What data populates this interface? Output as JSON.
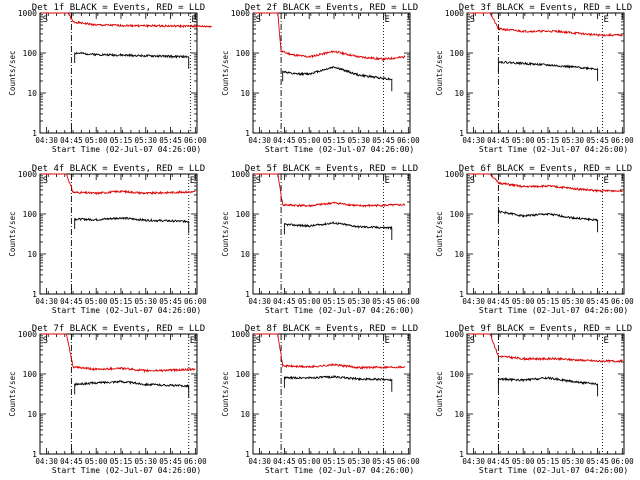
{
  "window_title": "",
  "chart_data": [
    {
      "type": "line",
      "title": "Det 1f BLACK = Events, RED = LLD",
      "xlabel": "Start Time (02-Jul-07 04:26:00)",
      "ylabel": "Counts/sec",
      "yscale": "log",
      "ylim": [
        1,
        1000
      ],
      "xlim_minutes": [
        0,
        95
      ],
      "x_ticks": [
        "04:30",
        "04:45",
        "05:00",
        "05:15",
        "05:30",
        "05:45",
        "06:00"
      ],
      "y_ticks": [
        "1",
        "10",
        "100",
        "1000"
      ],
      "markers": [
        {
          "label": "S",
          "at": "04:27"
        },
        {
          "label": "E",
          "at": "05:57"
        }
      ],
      "vlines": [
        {
          "style": "dash-dot",
          "at": "04:45"
        },
        {
          "style": "dotted",
          "at": "05:57"
        }
      ],
      "series": [
        {
          "name": "RED = LLD",
          "color": "#dd0000",
          "x": [
            "04:27",
            "04:43",
            "04:46",
            "05:00",
            "05:30",
            "06:10"
          ],
          "y": [
            1000,
            1000,
            600,
            500,
            480,
            460
          ]
        },
        {
          "name": "BLACK = Events",
          "color": "#000000",
          "x": [
            "04:47",
            "05:00",
            "05:30",
            "05:56"
          ],
          "y": [
            100,
            92,
            85,
            80
          ]
        }
      ]
    },
    {
      "type": "line",
      "title": "Det 2f BLACK = Events, RED = LLD",
      "xlabel": "Start Time (02-Jul-07 04:26:00)",
      "ylabel": "Counts/sec",
      "yscale": "log",
      "ylim": [
        1,
        1000
      ],
      "xlim_minutes": [
        0,
        95
      ],
      "x_ticks": [
        "04:30",
        "04:45",
        "05:00",
        "05:15",
        "05:30",
        "05:45",
        "06:00"
      ],
      "y_ticks": [
        "1",
        "10",
        "100",
        "1000"
      ],
      "markers": [
        {
          "label": "S",
          "at": "04:27"
        },
        {
          "label": "E",
          "at": "05:45"
        }
      ],
      "vlines": [
        {
          "style": "dash-dot",
          "at": "04:43"
        },
        {
          "style": "dotted",
          "at": "05:45"
        }
      ],
      "series": [
        {
          "name": "RED = LLD",
          "color": "#dd0000",
          "x": [
            "04:27",
            "04:41",
            "04:43",
            "04:50",
            "05:00",
            "05:15",
            "05:30",
            "05:45",
            "05:58"
          ],
          "y": [
            1000,
            1000,
            110,
            90,
            80,
            110,
            80,
            70,
            80
          ]
        },
        {
          "name": "BLACK = Events",
          "color": "#000000",
          "x": [
            "04:44",
            "04:50",
            "05:00",
            "05:15",
            "05:30",
            "05:50"
          ],
          "y": [
            35,
            30,
            30,
            45,
            28,
            22
          ]
        }
      ]
    },
    {
      "type": "line",
      "title": "Det 3f BLACK = Events, RED = LLD",
      "xlabel": "Start Time (02-Jul-07 04:26:00)",
      "ylabel": "Counts/sec",
      "yscale": "log",
      "ylim": [
        1,
        1000
      ],
      "xlim_minutes": [
        0,
        95
      ],
      "x_ticks": [
        "04:30",
        "04:45",
        "05:00",
        "05:15",
        "05:30",
        "05:45",
        "06:00"
      ],
      "y_ticks": [
        "1",
        "10",
        "100",
        "1000"
      ],
      "markers": [
        {
          "label": "S",
          "at": "04:27"
        },
        {
          "label": "E",
          "at": "05:48"
        }
      ],
      "vlines": [
        {
          "style": "dash-dot",
          "at": "04:45"
        },
        {
          "style": "dotted",
          "at": "05:48"
        }
      ],
      "series": [
        {
          "name": "RED = LLD",
          "color": "#dd0000",
          "x": [
            "04:27",
            "04:40",
            "04:45",
            "05:00",
            "05:20",
            "05:45",
            "06:00"
          ],
          "y": [
            1000,
            1000,
            400,
            350,
            350,
            280,
            280
          ]
        },
        {
          "name": "BLACK = Events",
          "color": "#000000",
          "x": [
            "04:45",
            "05:00",
            "05:15",
            "05:45"
          ],
          "y": [
            60,
            55,
            50,
            40
          ]
        }
      ]
    },
    {
      "type": "line",
      "title": "Det 4f BLACK = Events, RED = LLD",
      "xlabel": "Start Time (02-Jul-07 04:26:00)",
      "ylabel": "Counts/sec",
      "yscale": "log",
      "ylim": [
        1,
        1000
      ],
      "xlim_minutes": [
        0,
        95
      ],
      "x_ticks": [
        "04:30",
        "04:45",
        "05:00",
        "05:15",
        "05:30",
        "05:45",
        "06:00"
      ],
      "y_ticks": [
        "1",
        "10",
        "100",
        "1000"
      ],
      "markers": [
        {
          "label": "S",
          "at": "04:27"
        },
        {
          "label": "E",
          "at": "05:56"
        }
      ],
      "vlines": [
        {
          "style": "dash-dot",
          "at": "04:45"
        },
        {
          "style": "dotted",
          "at": "05:56"
        }
      ],
      "series": [
        {
          "name": "RED = LLD",
          "color": "#dd0000",
          "x": [
            "04:27",
            "04:42",
            "04:46",
            "05:00",
            "05:15",
            "05:30",
            "06:00"
          ],
          "y": [
            1000,
            1000,
            350,
            330,
            370,
            330,
            360
          ]
        },
        {
          "name": "BLACK = Events",
          "color": "#000000",
          "x": [
            "04:47",
            "05:00",
            "05:15",
            "05:30",
            "05:56"
          ],
          "y": [
            75,
            72,
            80,
            70,
            65
          ]
        }
      ]
    },
    {
      "type": "line",
      "title": "Det 5f BLACK = Events, RED = LLD",
      "xlabel": "Start Time (02-Jul-07 04:26:00)",
      "ylabel": "Counts/sec",
      "yscale": "log",
      "ylim": [
        1,
        1000
      ],
      "xlim_minutes": [
        0,
        95
      ],
      "x_ticks": [
        "04:30",
        "04:45",
        "05:00",
        "05:15",
        "05:30",
        "05:45",
        "06:00"
      ],
      "y_ticks": [
        "1",
        "10",
        "100",
        "1000"
      ],
      "markers": [
        {
          "label": "S",
          "at": "04:27"
        },
        {
          "label": "E",
          "at": "05:45"
        }
      ],
      "vlines": [
        {
          "style": "dash-dot",
          "at": "04:43"
        },
        {
          "style": "dotted",
          "at": "05:45"
        }
      ],
      "series": [
        {
          "name": "RED = LLD",
          "color": "#dd0000",
          "x": [
            "04:27",
            "04:41",
            "04:44",
            "05:00",
            "05:15",
            "05:30",
            "05:58"
          ],
          "y": [
            1000,
            1000,
            170,
            160,
            190,
            160,
            170
          ]
        },
        {
          "name": "BLACK = Events",
          "color": "#000000",
          "x": [
            "04:45",
            "05:00",
            "05:15",
            "05:30",
            "05:50"
          ],
          "y": [
            55,
            50,
            60,
            48,
            45
          ]
        }
      ]
    },
    {
      "type": "line",
      "title": "Det 6f BLACK = Events, RED = LLD",
      "xlabel": "Start Time (02-Jul-07 04:26:00)",
      "ylabel": "Counts/sec",
      "yscale": "log",
      "ylim": [
        1,
        1000
      ],
      "xlim_minutes": [
        0,
        95
      ],
      "x_ticks": [
        "04:30",
        "04:45",
        "05:00",
        "05:15",
        "05:30",
        "05:45",
        "06:00"
      ],
      "y_ticks": [
        "1",
        "10",
        "100",
        "1000"
      ],
      "markers": [
        {
          "label": "S",
          "at": "04:27"
        },
        {
          "label": "E",
          "at": "05:48"
        }
      ],
      "vlines": [
        {
          "style": "dash-dot",
          "at": "04:45"
        },
        {
          "style": "dotted",
          "at": "05:48"
        }
      ],
      "series": [
        {
          "name": "RED = LLD",
          "color": "#dd0000",
          "x": [
            "04:27",
            "04:40",
            "04:45",
            "05:00",
            "05:15",
            "05:45",
            "06:00"
          ],
          "y": [
            1000,
            1000,
            600,
            480,
            500,
            380,
            380
          ]
        },
        {
          "name": "BLACK = Events",
          "color": "#000000",
          "x": [
            "04:45",
            "05:00",
            "05:15",
            "05:30",
            "05:45"
          ],
          "y": [
            115,
            90,
            100,
            80,
            70
          ]
        }
      ]
    },
    {
      "type": "line",
      "title": "Det 7f BLACK = Events, RED = LLD",
      "xlabel": "Start Time (02-Jul-07 04:26:00)",
      "ylabel": "Counts/sec",
      "yscale": "log",
      "ylim": [
        1,
        1000
      ],
      "xlim_minutes": [
        0,
        95
      ],
      "x_ticks": [
        "04:30",
        "04:45",
        "05:00",
        "05:15",
        "05:30",
        "05:45",
        "06:00"
      ],
      "y_ticks": [
        "1",
        "10",
        "100",
        "1000"
      ],
      "markers": [
        {
          "label": "S",
          "at": "04:27"
        },
        {
          "label": "E",
          "at": "05:56"
        }
      ],
      "vlines": [
        {
          "style": "dash-dot",
          "at": "04:45"
        },
        {
          "style": "dotted",
          "at": "05:56"
        }
      ],
      "series": [
        {
          "name": "RED = LLD",
          "color": "#dd0000",
          "x": [
            "04:27",
            "04:42",
            "04:46",
            "05:00",
            "05:15",
            "05:30",
            "06:00"
          ],
          "y": [
            1000,
            1000,
            150,
            130,
            140,
            120,
            130
          ]
        },
        {
          "name": "BLACK = Events",
          "color": "#000000",
          "x": [
            "04:47",
            "05:00",
            "05:15",
            "05:30",
            "05:56"
          ],
          "y": [
            55,
            60,
            65,
            55,
            50
          ]
        }
      ]
    },
    {
      "type": "line",
      "title": "Det 8f BLACK = Events, RED = LLD",
      "xlabel": "Start Time (02-Jul-07 04:26:00)",
      "ylabel": "Counts/sec",
      "yscale": "log",
      "ylim": [
        1,
        1000
      ],
      "xlim_minutes": [
        0,
        95
      ],
      "x_ticks": [
        "04:30",
        "04:45",
        "05:00",
        "05:15",
        "05:30",
        "05:45",
        "06:00"
      ],
      "y_ticks": [
        "1",
        "10",
        "100",
        "1000"
      ],
      "markers": [
        {
          "label": "S",
          "at": "04:27"
        },
        {
          "label": "E",
          "at": "05:45"
        }
      ],
      "vlines": [
        {
          "style": "dash-dot",
          "at": "04:43"
        },
        {
          "style": "dotted",
          "at": "05:45"
        }
      ],
      "series": [
        {
          "name": "RED = LLD",
          "color": "#dd0000",
          "x": [
            "04:27",
            "04:41",
            "04:44",
            "05:00",
            "05:15",
            "05:30",
            "05:58"
          ],
          "y": [
            1000,
            1000,
            160,
            150,
            170,
            145,
            150
          ]
        },
        {
          "name": "BLACK = Events",
          "color": "#000000",
          "x": [
            "04:45",
            "05:00",
            "05:15",
            "05:30",
            "05:50"
          ],
          "y": [
            80,
            80,
            85,
            75,
            72
          ]
        }
      ]
    },
    {
      "type": "line",
      "title": "Det 9f BLACK = Events, RED = LLD",
      "xlabel": "Start Time (02-Jul-07 04:26:00)",
      "ylabel": "Counts/sec",
      "yscale": "log",
      "ylim": [
        1,
        1000
      ],
      "xlim_minutes": [
        0,
        95
      ],
      "x_ticks": [
        "04:30",
        "04:45",
        "05:00",
        "05:15",
        "05:30",
        "05:45",
        "06:00"
      ],
      "y_ticks": [
        "1",
        "10",
        "100",
        "1000"
      ],
      "markers": [
        {
          "label": "S",
          "at": "04:27"
        },
        {
          "label": "E",
          "at": "05:48"
        }
      ],
      "vlines": [
        {
          "style": "dash-dot",
          "at": "04:45"
        },
        {
          "style": "dotted",
          "at": "05:48"
        }
      ],
      "series": [
        {
          "name": "RED = LLD",
          "color": "#dd0000",
          "x": [
            "04:27",
            "04:40",
            "04:45",
            "05:00",
            "05:20",
            "05:45",
            "06:00"
          ],
          "y": [
            1000,
            1000,
            280,
            240,
            240,
            210,
            210
          ]
        },
        {
          "name": "BLACK = Events",
          "color": "#000000",
          "x": [
            "04:45",
            "05:00",
            "05:15",
            "05:30",
            "05:45"
          ],
          "y": [
            75,
            70,
            80,
            65,
            55
          ]
        }
      ]
    }
  ]
}
